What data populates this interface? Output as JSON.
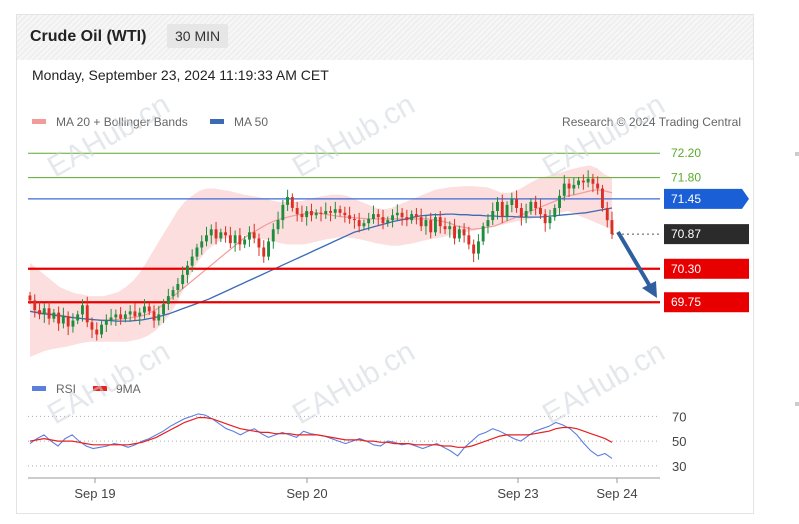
{
  "header": {
    "instrument": "Crude Oil (WTI)",
    "timeframe": "30 MIN"
  },
  "timestamp": "Monday, September 23, 2024 11:19:33 AM CET",
  "legend": {
    "bollinger": "MA 20 + Bollinger Bands",
    "ma50": "MA 50",
    "credit": "Research © 2024 Trading Central",
    "rsi": "RSI",
    "ma9": "9MA"
  },
  "watermark": "EAHub.cn",
  "colors": {
    "bull": "#1e8e3e",
    "bear": "#d93025",
    "ma50": "#3b6bb5",
    "bb": "#f7b4b4",
    "resistance_line": "#3b6bd8",
    "support": "#e80000",
    "levels_green": "#5aaa2b",
    "current": "#2b2b2b"
  },
  "chart_data": {
    "type": "candlestick",
    "x_ticks": [
      "Sep 19",
      "Sep 20",
      "Sep 23",
      "Sep 24"
    ],
    "ylim": [
      68.8,
      72.5
    ],
    "levels": [
      {
        "value": 72.2,
        "label": "72.20",
        "kind": "level"
      },
      {
        "value": 71.8,
        "label": "71.80",
        "kind": "level"
      },
      {
        "value": 71.45,
        "label": "71.45",
        "kind": "resistance"
      },
      {
        "value": 70.87,
        "label": "70.87",
        "kind": "current"
      },
      {
        "value": 70.3,
        "label": "70.30",
        "kind": "support"
      },
      {
        "value": 69.75,
        "label": "69.75",
        "kind": "support"
      }
    ],
    "close": [
      69.78,
      69.62,
      69.55,
      69.65,
      69.48,
      69.58,
      69.4,
      69.52,
      69.35,
      69.45,
      69.55,
      69.7,
      69.42,
      69.3,
      69.22,
      69.38,
      69.45,
      69.5,
      69.55,
      69.48,
      69.55,
      69.6,
      69.52,
      69.58,
      69.68,
      69.6,
      69.45,
      69.55,
      69.72,
      69.85,
      69.95,
      70.05,
      70.2,
      70.35,
      70.5,
      70.65,
      70.75,
      70.85,
      70.95,
      70.8,
      70.9,
      70.85,
      70.72,
      70.85,
      70.7,
      70.78,
      70.9,
      70.8,
      70.65,
      70.5,
      70.75,
      70.95,
      71.1,
      71.35,
      71.48,
      71.3,
      71.2,
      71.15,
      71.25,
      71.18,
      71.22,
      71.2,
      71.25,
      71.22,
      71.28,
      71.22,
      71.18,
      71.12,
      71.1,
      71.0,
      71.05,
      71.12,
      71.2,
      71.15,
      71.05,
      71.1,
      71.18,
      71.22,
      71.15,
      71.1,
      71.2,
      71.15,
      71.0,
      71.1,
      70.9,
      71.15,
      71.0,
      70.95,
      71.0,
      70.8,
      70.95,
      70.85,
      70.7,
      70.55,
      70.75,
      71.0,
      71.1,
      71.25,
      71.4,
      71.15,
      71.35,
      71.45,
      71.3,
      71.15,
      71.25,
      71.4,
      71.3,
      71.2,
      71.05,
      71.15,
      71.3,
      71.5,
      71.7,
      71.62,
      71.68,
      71.75,
      71.72,
      71.78,
      71.7,
      71.62,
      71.3,
      71.1,
      70.87
    ],
    "ma50": [
      69.6,
      69.58,
      69.56,
      69.55,
      69.53,
      69.52,
      69.5,
      69.49,
      69.48,
      69.47,
      69.46,
      69.45,
      69.45,
      69.44,
      69.44,
      69.44,
      69.45,
      69.46,
      69.48,
      69.5,
      69.53,
      69.56,
      69.6,
      69.64,
      69.68,
      69.72,
      69.76,
      69.8,
      69.85,
      69.9,
      69.95,
      70.0,
      70.05,
      70.1,
      70.15,
      70.2,
      70.25,
      70.3,
      70.35,
      70.4,
      70.45,
      70.5,
      70.55,
      70.6,
      70.65,
      70.7,
      70.75,
      70.8,
      70.85,
      70.9,
      70.93,
      70.96,
      70.99,
      71.02,
      71.05,
      71.08,
      71.1,
      71.12,
      71.15,
      71.17,
      71.18,
      71.19,
      71.19,
      71.2,
      71.2,
      71.19,
      71.19,
      71.18,
      71.18,
      71.17,
      71.17,
      71.16,
      71.16,
      71.16,
      71.15,
      71.15,
      71.15,
      71.15,
      71.16,
      71.17,
      71.18,
      71.19,
      71.2,
      71.21,
      71.22,
      71.24,
      71.26,
      71.28,
      71.3
    ],
    "bollinger": {
      "mid": [
        69.6,
        69.6,
        69.58,
        69.56,
        69.54,
        69.52,
        69.5,
        69.48,
        69.47,
        69.46,
        69.46,
        69.46,
        69.47,
        69.48,
        69.5,
        69.52,
        69.56,
        69.62,
        69.7,
        69.8,
        69.9,
        70.0,
        70.1,
        70.2,
        70.3,
        70.4,
        70.5,
        70.6,
        70.7,
        70.8,
        70.88,
        70.95,
        71.02,
        71.08,
        71.12,
        71.15,
        71.18,
        71.2,
        71.22,
        71.22,
        71.2,
        71.18,
        71.16,
        71.15,
        71.14,
        71.13,
        71.12,
        71.12,
        71.12,
        71.12,
        71.12,
        71.12,
        71.12,
        71.12,
        71.12,
        71.1,
        71.08,
        71.05,
        71.0,
        70.98,
        70.95,
        70.96,
        70.98,
        71.0,
        71.05,
        71.1,
        71.15,
        71.2,
        71.25,
        71.3,
        71.35,
        71.4,
        71.45,
        71.5,
        71.52,
        71.55,
        71.58,
        71.6,
        71.58,
        71.55
      ],
      "upper": [
        70.4,
        70.3,
        70.2,
        70.1,
        70.0,
        69.95,
        69.9,
        69.88,
        69.85,
        69.85,
        69.85,
        69.88,
        69.92,
        70.0,
        70.1,
        70.25,
        70.45,
        70.65,
        70.85,
        71.05,
        71.25,
        71.4,
        71.5,
        71.58,
        71.62,
        71.62,
        71.6,
        71.58,
        71.55,
        71.52,
        71.5,
        71.48,
        71.45,
        71.42,
        71.4,
        71.4,
        71.4,
        71.42,
        71.45,
        71.48,
        71.5,
        71.52,
        71.52,
        71.5,
        71.45,
        71.4,
        71.35,
        71.3,
        71.28,
        71.3,
        71.35,
        71.4,
        71.45,
        71.5,
        71.55,
        71.6,
        71.62,
        71.64,
        71.65,
        71.66,
        71.66,
        71.65,
        71.64,
        71.6,
        71.55,
        71.55,
        71.58,
        71.65,
        71.72,
        71.78,
        71.82,
        71.85,
        71.88,
        71.92,
        71.95,
        71.98,
        72.0,
        71.95,
        71.85,
        71.8
      ],
      "lower": [
        68.85,
        68.9,
        68.95,
        68.98,
        69.0,
        69.02,
        69.05,
        69.08,
        69.1,
        69.1,
        69.1,
        69.1,
        69.1,
        69.1,
        69.12,
        69.15,
        69.2,
        69.28,
        69.4,
        69.55,
        69.75,
        70.0,
        70.25,
        70.45,
        70.6,
        70.7,
        70.78,
        70.82,
        70.85,
        70.85,
        70.82,
        70.8,
        70.78,
        70.75,
        70.72,
        70.7,
        70.7,
        70.7,
        70.72,
        70.75,
        70.78,
        70.8,
        70.82,
        70.82,
        70.8,
        70.78,
        70.75,
        70.72,
        70.7,
        70.68,
        70.68,
        70.7,
        70.72,
        70.75,
        70.78,
        70.8,
        70.82,
        70.85,
        70.88,
        70.9,
        70.92,
        70.95,
        70.98,
        71.0,
        71.02,
        71.05,
        71.08,
        71.1,
        71.12,
        71.15,
        71.18,
        71.2,
        71.22,
        71.25,
        71.2,
        71.15,
        71.1,
        71.05,
        71.0,
        70.95
      ]
    },
    "rsi": {
      "ticks": [
        "70",
        "50",
        "30"
      ],
      "ylim": [
        25,
        80
      ],
      "rsi": [
        48,
        52,
        55,
        50,
        46,
        52,
        55,
        50,
        46,
        44,
        45,
        46,
        48,
        47,
        45,
        47,
        50,
        52,
        55,
        58,
        62,
        65,
        68,
        70,
        72,
        71,
        68,
        64,
        60,
        58,
        55,
        58,
        60,
        56,
        53,
        55,
        57,
        55,
        53,
        58,
        56,
        55,
        54,
        52,
        50,
        48,
        50,
        52,
        50,
        47,
        46,
        50,
        49,
        47,
        48,
        46,
        44,
        46,
        48,
        45,
        42,
        38,
        45,
        50,
        55,
        57,
        60,
        58,
        55,
        52,
        50,
        54,
        58,
        60,
        62,
        65,
        63,
        60,
        55,
        48,
        42,
        38,
        40,
        36
      ],
      "ma9": [
        50,
        51,
        52,
        51,
        50,
        50,
        50,
        49,
        48,
        47,
        47,
        47,
        47,
        47,
        47,
        48,
        49,
        51,
        53,
        56,
        59,
        62,
        65,
        67,
        69,
        69,
        68,
        66,
        64,
        62,
        60,
        59,
        58,
        57,
        57,
        56,
        56,
        56,
        55,
        55,
        55,
        55,
        54,
        53,
        52,
        51,
        51,
        51,
        50,
        50,
        49,
        49,
        48,
        48,
        48,
        47,
        47,
        47,
        47,
        46,
        46,
        45,
        45,
        46,
        48,
        50,
        52,
        54,
        55,
        55,
        55,
        55,
        56,
        57,
        58,
        60,
        61,
        61,
        60,
        58,
        56,
        54,
        52,
        49
      ]
    }
  }
}
